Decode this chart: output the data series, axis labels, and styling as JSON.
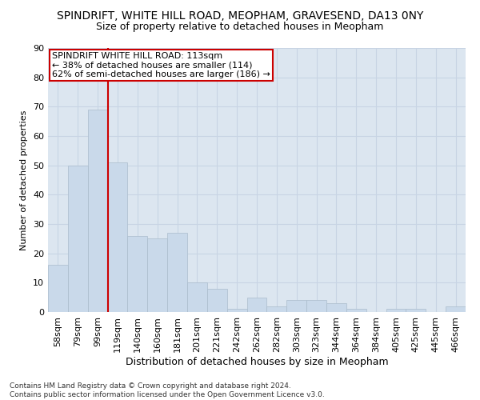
{
  "title": "SPINDRIFT, WHITE HILL ROAD, MEOPHAM, GRAVESEND, DA13 0NY",
  "subtitle": "Size of property relative to detached houses in Meopham",
  "xlabel": "Distribution of detached houses by size in Meopham",
  "ylabel": "Number of detached properties",
  "footer_line1": "Contains HM Land Registry data © Crown copyright and database right 2024.",
  "footer_line2": "Contains public sector information licensed under the Open Government Licence v3.0.",
  "bin_labels": [
    "58sqm",
    "79sqm",
    "99sqm",
    "119sqm",
    "140sqm",
    "160sqm",
    "181sqm",
    "201sqm",
    "221sqm",
    "242sqm",
    "262sqm",
    "282sqm",
    "303sqm",
    "323sqm",
    "344sqm",
    "364sqm",
    "384sqm",
    "405sqm",
    "425sqm",
    "445sqm",
    "466sqm"
  ],
  "bar_values": [
    16,
    50,
    69,
    51,
    26,
    25,
    27,
    10,
    8,
    1,
    5,
    2,
    4,
    4,
    3,
    1,
    0,
    1,
    1,
    0,
    2
  ],
  "bar_color": "#c9d9ea",
  "bar_edge_color": "#aabccc",
  "vline_color": "#cc0000",
  "annotation_line1": "SPINDRIFT WHITE HILL ROAD: 113sqm",
  "annotation_line2": "← 38% of detached houses are smaller (114)",
  "annotation_line3": "62% of semi-detached houses are larger (186) →",
  "annotation_box_color": "white",
  "annotation_box_edge": "#cc0000",
  "ylim": [
    0,
    90
  ],
  "yticks": [
    0,
    10,
    20,
    30,
    40,
    50,
    60,
    70,
    80,
    90
  ],
  "grid_color": "#c8d4e4",
  "bg_color": "#dce6f0",
  "title_fontsize": 10,
  "subtitle_fontsize": 9,
  "xlabel_fontsize": 9,
  "ylabel_fontsize": 8,
  "tick_fontsize": 8,
  "annot_fontsize": 8,
  "footer_fontsize": 6.5
}
